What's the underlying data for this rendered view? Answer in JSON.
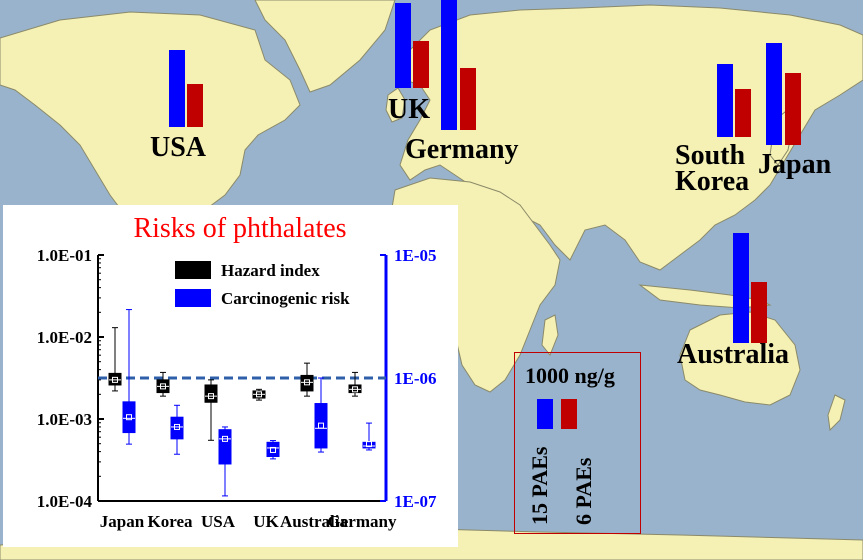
{
  "map": {
    "countries": [
      {
        "name": "USA",
        "label_lines": [
          "USA"
        ]
      },
      {
        "name": "UK",
        "label_lines": [
          "UK"
        ]
      },
      {
        "name": "Germany",
        "label_lines": [
          "Germany"
        ]
      },
      {
        "name": "South Korea",
        "label_lines": [
          "South",
          "Korea"
        ]
      },
      {
        "name": "Japan",
        "label_lines": [
          "Japan"
        ]
      },
      {
        "name": "Australia",
        "label_lines": [
          "Australia"
        ]
      }
    ],
    "bar_legend": {
      "scale_label": "1000 ng/g",
      "series": [
        {
          "name": "15 PAEs",
          "color": "#0000ff"
        },
        {
          "name": "6 PAEs",
          "color": "#c00000"
        }
      ]
    },
    "colors": {
      "ocean": "#99b3cc",
      "land": "#f5f0b3",
      "border": "#8a8a6a"
    }
  },
  "chart_data": {
    "type": "box",
    "title": "Risks of phthalates",
    "title_color": "#ff0000",
    "categories": [
      "Japan",
      "Korea",
      "USA",
      "UK",
      "Australia",
      "Germany"
    ],
    "y_left": {
      "scale": "log",
      "ylim": [
        0.0001,
        0.1
      ],
      "ticks": [
        "1.0E-01",
        "1.0E-02",
        "1.0E-03",
        "1.0E-04"
      ]
    },
    "y_right": {
      "scale": "log",
      "ylim": [
        1e-07,
        1e-05
      ],
      "color": "#0000ff",
      "ticks": [
        "1E-05",
        "1E-06",
        "1E-07"
      ]
    },
    "reference_line": {
      "value": 0.003162,
      "color": "#2e5fa8",
      "style": "dashed"
    },
    "legend": [
      {
        "label": "Hazard index",
        "color": "#000000"
      },
      {
        "label": "Carcinogenic risk",
        "color": "#0000ff"
      }
    ],
    "series": [
      {
        "name": "Hazard index",
        "color": "#000000",
        "axis": "left",
        "boxes": [
          {
            "min": 0.0022,
            "q1": 0.0026,
            "median": 0.003,
            "q3": 0.0036,
            "max": 0.013,
            "mean": 0.003
          },
          {
            "min": 0.0019,
            "q1": 0.0021,
            "median": 0.0025,
            "q3": 0.003,
            "max": 0.0037,
            "mean": 0.0025
          },
          {
            "min": 0.00055,
            "q1": 0.0016,
            "median": 0.0019,
            "q3": 0.0026,
            "max": 0.003,
            "mean": 0.0019
          },
          {
            "min": 0.0017,
            "q1": 0.0018,
            "median": 0.002,
            "q3": 0.0022,
            "max": 0.0023,
            "mean": 0.002
          },
          {
            "min": 0.0019,
            "q1": 0.0022,
            "median": 0.0028,
            "q3": 0.0034,
            "max": 0.0048,
            "mean": 0.0028
          },
          {
            "min": 0.0019,
            "q1": 0.0021,
            "median": 0.0023,
            "q3": 0.0026,
            "max": 0.0037,
            "mean": 0.0023
          }
        ]
      },
      {
        "name": "Carcinogenic risk",
        "color": "#0000ff",
        "axis": "right",
        "boxes": [
          {
            "min": 2.9e-07,
            "q1": 3.6e-07,
            "median": 4.7e-07,
            "q3": 6.4e-07,
            "max": 3.6e-06,
            "mean": 4.8e-07
          },
          {
            "min": 2.4e-07,
            "q1": 3.2e-07,
            "median": 4e-07,
            "q3": 4.8e-07,
            "max": 6e-07,
            "mean": 4e-07
          },
          {
            "min": 1.1e-07,
            "q1": 2e-07,
            "median": 3.2e-07,
            "q3": 3.8e-07,
            "max": 4e-07,
            "mean": 3.2e-07
          },
          {
            "min": 2.2e-07,
            "q1": 2.3e-07,
            "median": 2.7e-07,
            "q3": 3e-07,
            "max": 3.1e-07,
            "mean": 2.6e-07
          },
          {
            "min": 2.5e-07,
            "q1": 2.7e-07,
            "median": 3.9e-07,
            "q3": 6.2e-07,
            "max": 1e-06,
            "mean": 4.1e-07
          },
          {
            "min": 2.6e-07,
            "q1": 2.7e-07,
            "median": 2.8e-07,
            "q3": 3e-07,
            "max": 4.3e-07,
            "mean": 2.9e-07
          }
        ]
      }
    ]
  }
}
